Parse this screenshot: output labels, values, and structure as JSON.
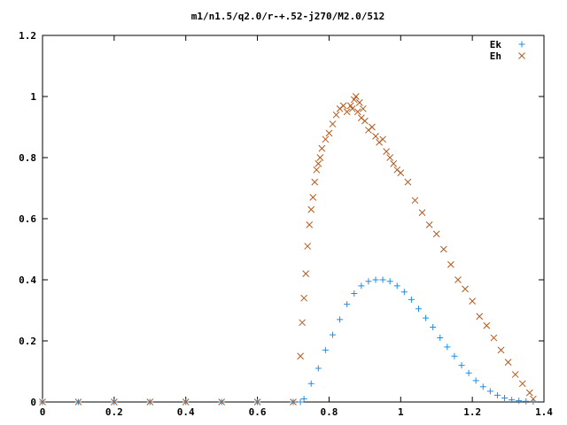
{
  "chart_data": {
    "type": "scatter",
    "title": "m1/n1.5/q2.0/r-+.52-j270/M2.0/512",
    "xlabel": "",
    "ylabel": "",
    "xlim": [
      0,
      1.4
    ],
    "ylim": [
      0,
      1.2
    ],
    "x_ticks": [
      "0",
      "0.2",
      "0.4",
      "0.6",
      "0.8",
      "1",
      "1.2",
      "1.4"
    ],
    "y_ticks": [
      "0",
      "0.2",
      "0.4",
      "0.6",
      "0.8",
      "1",
      "1.2"
    ],
    "grid": false,
    "legend_position": "top-right",
    "series": [
      {
        "name": "Ek",
        "marker": "plus",
        "color": "#1f8ee8",
        "x": [
          0.0,
          0.1,
          0.2,
          0.3,
          0.4,
          0.5,
          0.6,
          0.7,
          0.72,
          0.73,
          0.75,
          0.77,
          0.79,
          0.81,
          0.83,
          0.85,
          0.87,
          0.89,
          0.91,
          0.93,
          0.95,
          0.97,
          0.99,
          1.01,
          1.03,
          1.05,
          1.07,
          1.09,
          1.11,
          1.13,
          1.15,
          1.17,
          1.19,
          1.21,
          1.23,
          1.25,
          1.27,
          1.29,
          1.31,
          1.33,
          1.35,
          1.37
        ],
        "y": [
          0,
          0,
          0,
          0,
          0,
          0,
          0,
          0,
          0,
          0.01,
          0.06,
          0.11,
          0.17,
          0.22,
          0.27,
          0.32,
          0.355,
          0.38,
          0.395,
          0.4,
          0.4,
          0.395,
          0.38,
          0.36,
          0.335,
          0.305,
          0.275,
          0.245,
          0.21,
          0.18,
          0.15,
          0.12,
          0.095,
          0.07,
          0.05,
          0.035,
          0.022,
          0.013,
          0.007,
          0.004,
          0.002,
          0.001
        ]
      },
      {
        "name": "Eh",
        "marker": "cross",
        "color": "#b35a1f",
        "x": [
          0.0,
          0.1,
          0.2,
          0.3,
          0.4,
          0.5,
          0.6,
          0.7,
          0.72,
          0.725,
          0.73,
          0.735,
          0.74,
          0.745,
          0.75,
          0.755,
          0.76,
          0.765,
          0.77,
          0.775,
          0.78,
          0.79,
          0.8,
          0.81,
          0.82,
          0.83,
          0.84,
          0.85,
          0.86,
          0.865,
          0.87,
          0.875,
          0.88,
          0.885,
          0.89,
          0.895,
          0.9,
          0.91,
          0.92,
          0.93,
          0.94,
          0.95,
          0.96,
          0.97,
          0.98,
          0.99,
          1.0,
          1.02,
          1.04,
          1.06,
          1.08,
          1.1,
          1.12,
          1.14,
          1.16,
          1.18,
          1.2,
          1.22,
          1.24,
          1.26,
          1.28,
          1.3,
          1.32,
          1.34,
          1.36,
          1.37
        ],
        "y": [
          0,
          0,
          0,
          0,
          0,
          0,
          0,
          0,
          0.15,
          0.26,
          0.34,
          0.42,
          0.51,
          0.58,
          0.63,
          0.67,
          0.72,
          0.76,
          0.78,
          0.8,
          0.83,
          0.86,
          0.88,
          0.91,
          0.94,
          0.96,
          0.97,
          0.95,
          0.97,
          0.96,
          0.99,
          1.0,
          0.95,
          0.98,
          0.93,
          0.96,
          0.92,
          0.89,
          0.9,
          0.87,
          0.85,
          0.86,
          0.82,
          0.8,
          0.78,
          0.76,
          0.75,
          0.72,
          0.66,
          0.62,
          0.58,
          0.55,
          0.5,
          0.45,
          0.4,
          0.37,
          0.33,
          0.28,
          0.25,
          0.21,
          0.17,
          0.13,
          0.09,
          0.06,
          0.03,
          0.01
        ]
      }
    ]
  }
}
